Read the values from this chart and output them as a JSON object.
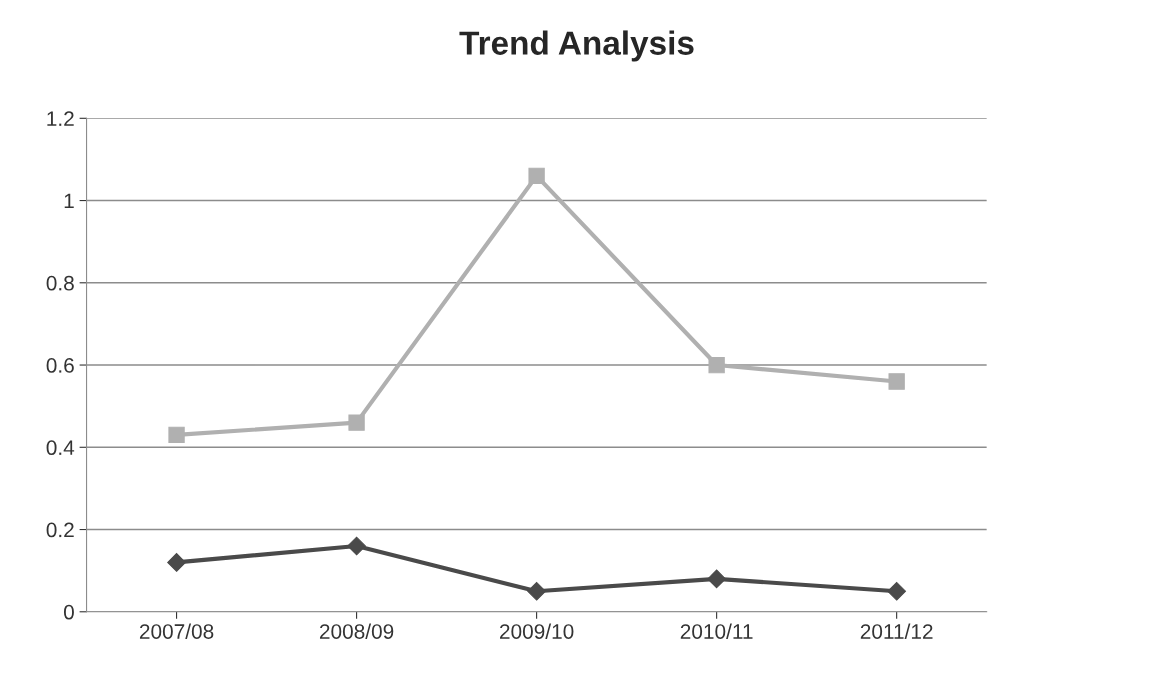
{
  "chart_data": {
    "type": "line",
    "title": "Trend Analysis",
    "categories": [
      "2007/08",
      "2008/09",
      "2009/10",
      "2010/11",
      "2011/12"
    ],
    "series": [
      {
        "color": "#b0b0b0",
        "marker": "square",
        "values": [
          0.43,
          0.46,
          1.06,
          0.6,
          0.56
        ]
      },
      {
        "color": "#4a4a4a",
        "marker": "diamond",
        "values": [
          0.12,
          0.16,
          0.05,
          0.08,
          0.05
        ]
      }
    ],
    "ylim": [
      0,
      1.2
    ],
    "yticks": [
      {
        "value": 0,
        "label": "0"
      },
      0.2,
      0.4,
      0.6,
      0.8,
      {
        "value": 1,
        "label": "1"
      },
      1.2
    ],
    "grid": "y"
  }
}
